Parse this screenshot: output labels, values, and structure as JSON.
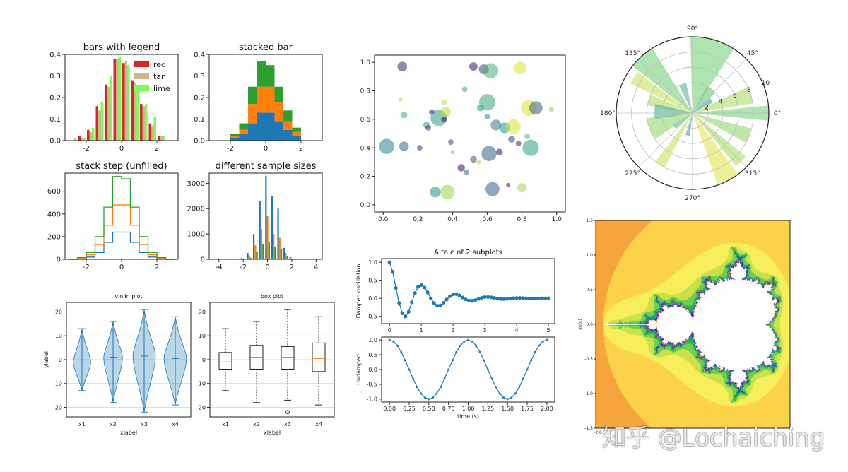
{
  "watermark": "知乎 @Lochaiching",
  "colors": {
    "red": "#d62728",
    "tan": "#d2b48c",
    "lime": "#7cfc5a",
    "blue": "#1f77b4",
    "orange": "#ff7f0e",
    "green": "#2ca02c",
    "violin": "#1f77b4",
    "axes": "#444444"
  },
  "chart_data": [
    {
      "id": "bars",
      "type": "bar",
      "title": "bars with legend",
      "xlim": [
        -3.2,
        3.2
      ],
      "ylim": [
        0,
        0.4
      ],
      "xticks": [
        "-2",
        "0",
        "2"
      ],
      "yticks": [
        "0.0",
        "0.1",
        "0.2",
        "0.3",
        "0.4"
      ],
      "x": [
        -2.75,
        -2.25,
        -1.75,
        -1.25,
        -0.75,
        -0.25,
        0.25,
        0.75,
        1.25,
        1.75,
        2.25,
        2.75
      ],
      "series": [
        {
          "name": "red",
          "values": [
            0.0,
            0.02,
            0.05,
            0.16,
            0.26,
            0.38,
            0.36,
            0.28,
            0.17,
            0.08,
            0.02,
            0.0
          ]
        },
        {
          "name": "tan",
          "values": [
            0.0,
            0.01,
            0.04,
            0.14,
            0.25,
            0.38,
            0.37,
            0.27,
            0.16,
            0.07,
            0.02,
            0.0
          ]
        },
        {
          "name": "lime",
          "values": [
            0.01,
            0.01,
            0.06,
            0.18,
            0.3,
            0.39,
            0.35,
            0.24,
            0.17,
            0.11,
            0.02,
            0.0
          ]
        }
      ]
    },
    {
      "id": "stacked",
      "type": "bar",
      "title": "stacked bar",
      "xlim": [
        -3.2,
        3.2
      ],
      "ylim": [
        0,
        0.4
      ],
      "xticks": [
        "-2",
        "0",
        "2"
      ],
      "yticks": [
        "0.0",
        "0.1",
        "0.2",
        "0.3",
        "0.4"
      ],
      "x": [
        -2.75,
        -2.25,
        -1.75,
        -1.25,
        -0.75,
        -0.25,
        0.25,
        0.75,
        1.25,
        1.75,
        2.25,
        2.75
      ],
      "series": [
        {
          "values": [
            0.0,
            0.0,
            0.01,
            0.03,
            0.08,
            0.13,
            0.13,
            0.09,
            0.05,
            0.02,
            0.0,
            0.0
          ]
        },
        {
          "values": [
            0.0,
            0.0,
            0.01,
            0.02,
            0.09,
            0.12,
            0.12,
            0.09,
            0.04,
            0.02,
            0.0,
            0.0
          ]
        },
        {
          "values": [
            0.0,
            0.0,
            0.01,
            0.03,
            0.08,
            0.12,
            0.1,
            0.07,
            0.05,
            0.02,
            0.0,
            0.0
          ]
        }
      ]
    },
    {
      "id": "step",
      "type": "line",
      "title": "stack step (unfilled)",
      "xlim": [
        -3.2,
        3.2
      ],
      "ylim": [
        0,
        760
      ],
      "xticks": [
        "-2",
        "0",
        "2"
      ],
      "yticks": [
        "0",
        "200",
        "400",
        "600"
      ],
      "edges": [
        -3.0,
        -2.5,
        -2.0,
        -1.5,
        -1.0,
        -0.5,
        0.0,
        0.5,
        1.0,
        1.5,
        2.0,
        2.5,
        3.0
      ],
      "series": [
        {
          "values": [
            0,
            5,
            20,
            60,
            150,
            240,
            240,
            150,
            60,
            20,
            5,
            0
          ]
        },
        {
          "values": [
            0,
            10,
            40,
            130,
            300,
            480,
            480,
            300,
            130,
            40,
            10,
            0
          ]
        },
        {
          "values": [
            0,
            15,
            60,
            200,
            460,
            730,
            710,
            460,
            200,
            60,
            15,
            0
          ]
        }
      ]
    },
    {
      "id": "samples",
      "type": "bar",
      "title": "different sample sizes",
      "xlim": [
        -4.8,
        4.5
      ],
      "ylim": [
        0,
        3400
      ],
      "xticks": [
        "-4",
        "-2",
        "0",
        "2",
        "4"
      ],
      "yticks": [
        "0",
        "1000",
        "2000",
        "3000"
      ],
      "x": [
        -2.0,
        -1.5,
        -1.0,
        -0.5,
        0.0,
        0.5,
        1.0,
        1.5,
        2.0
      ],
      "series": [
        {
          "values": [
            50,
            250,
            1000,
            2300,
            3300,
            2500,
            2000,
            450,
            80
          ]
        },
        {
          "values": [
            20,
            150,
            550,
            1200,
            1700,
            1000,
            850,
            250,
            40
          ]
        },
        {
          "values": [
            10,
            60,
            300,
            600,
            700,
            480,
            400,
            130,
            20
          ]
        }
      ]
    },
    {
      "id": "scatter",
      "type": "scatter",
      "xlim": [
        -0.05,
        1.05
      ],
      "ylim": [
        -0.05,
        1.05
      ],
      "xticks": [
        "0.0",
        "0.2",
        "0.4",
        "0.6",
        "0.8",
        "1.0"
      ],
      "yticks": [
        "0.0",
        "0.2",
        "0.4",
        "0.6",
        "0.8",
        "1.0"
      ],
      "points": [
        [
          0.02,
          0.41,
          300,
          0.45
        ],
        [
          0.11,
          0.97,
          120,
          0.1
        ],
        [
          0.12,
          0.41,
          120,
          0.35
        ],
        [
          0.12,
          0.63,
          60,
          0.65
        ],
        [
          0.1,
          0.74,
          20,
          0.85
        ],
        [
          0.21,
          0.4,
          40,
          0.15
        ],
        [
          0.25,
          0.56,
          60,
          0.55
        ],
        [
          0.28,
          0.65,
          40,
          0.05
        ],
        [
          0.32,
          0.61,
          350,
          0.55
        ],
        [
          0.3,
          0.09,
          150,
          0.5
        ],
        [
          0.36,
          0.65,
          140,
          0.9
        ],
        [
          0.35,
          0.72,
          40,
          0.9
        ],
        [
          0.37,
          0.09,
          270,
          0.85
        ],
        [
          0.45,
          0.26,
          70,
          0.05
        ],
        [
          0.39,
          0.44,
          40,
          0.2
        ],
        [
          0.47,
          0.81,
          40,
          0.6
        ],
        [
          0.52,
          0.97,
          90,
          0.05
        ],
        [
          0.56,
          0.68,
          60,
          0.55
        ],
        [
          0.58,
          0.95,
          130,
          0.2
        ],
        [
          0.62,
          0.94,
          300,
          0.65
        ],
        [
          0.6,
          0.72,
          350,
          0.6
        ],
        [
          0.61,
          0.36,
          300,
          0.3
        ],
        [
          0.6,
          0.62,
          40,
          0.5
        ],
        [
          0.65,
          0.56,
          150,
          0.4
        ],
        [
          0.63,
          0.11,
          260,
          0.3
        ],
        [
          0.67,
          0.37,
          60,
          0.05
        ],
        [
          0.7,
          0.54,
          150,
          0.5
        ],
        [
          0.75,
          0.55,
          280,
          0.95
        ],
        [
          0.74,
          0.46,
          60,
          0.2
        ],
        [
          0.79,
          0.96,
          200,
          0.95
        ],
        [
          0.8,
          0.12,
          110,
          0.85
        ],
        [
          0.84,
          0.68,
          330,
          0.95
        ],
        [
          0.85,
          0.4,
          350,
          0.55
        ],
        [
          0.88,
          0.68,
          230,
          0.3
        ],
        [
          0.83,
          0.48,
          40,
          0.7
        ],
        [
          0.97,
          0.67,
          30,
          0.8
        ],
        [
          0.52,
          0.32,
          60,
          0.25
        ],
        [
          0.26,
          0.54,
          40,
          0.15
        ],
        [
          0.55,
          0.3,
          30,
          0.9
        ],
        [
          0.72,
          0.14,
          20,
          0.05
        ],
        [
          0.48,
          0.23,
          40,
          0.35
        ],
        [
          0.4,
          0.37,
          20,
          0.75
        ],
        [
          0.78,
          0.43,
          40,
          0.1
        ],
        [
          0.35,
          0.6,
          40,
          0.05
        ]
      ]
    },
    {
      "id": "polar",
      "type": "bar",
      "angle_labels": [
        "0°",
        "45°",
        "90°",
        "135°",
        "180°",
        "225°",
        "270°",
        "315°"
      ],
      "r_labels": [
        "2",
        "4",
        "6",
        "8",
        "10"
      ],
      "rmax": 10,
      "bars": [
        [
          0.0,
          10,
          0.2,
          0.75
        ],
        [
          0.3,
          8,
          0.28,
          0.85
        ],
        [
          0.6,
          3,
          0.25,
          0.5
        ],
        [
          0.9,
          4,
          0.35,
          0.7
        ],
        [
          1.3,
          10,
          0.6,
          0.75
        ],
        [
          1.9,
          4,
          0.25,
          0.6
        ],
        [
          2.3,
          10,
          0.35,
          0.75
        ],
        [
          2.6,
          9,
          0.2,
          0.9
        ],
        [
          2.85,
          6,
          0.25,
          0.85
        ],
        [
          3.1,
          5,
          0.4,
          0.55
        ],
        [
          3.5,
          6,
          0.5,
          0.8
        ],
        [
          3.8,
          3,
          0.2,
          0.65
        ],
        [
          4.15,
          8,
          0.18,
          0.9
        ],
        [
          4.5,
          3,
          0.2,
          0.5
        ],
        [
          5.2,
          10,
          0.3,
          0.95
        ],
        [
          5.5,
          9,
          0.2,
          0.85
        ],
        [
          5.9,
          8,
          0.25,
          0.8
        ]
      ]
    },
    {
      "id": "subplots",
      "type": "line",
      "title": "A tale of 2 subplots",
      "ylabel_top": "Damped oscillation",
      "ylabel_bottom": "Undamped",
      "xlabel": "time (s)",
      "top": {
        "xlim": [
          -0.25,
          5.2
        ],
        "ylim": [
          -0.7,
          1.1
        ],
        "xticks": [
          "0",
          "1",
          "2",
          "3",
          "4",
          "5"
        ],
        "yticks": [
          "-0.5",
          "0.0",
          "0.5",
          "1.0"
        ],
        "x": [
          0,
          0.1,
          0.2,
          0.3,
          0.4,
          0.5,
          0.6,
          0.7,
          0.8,
          0.9,
          1.0,
          1.1,
          1.2,
          1.3,
          1.4,
          1.5,
          1.6,
          1.7,
          1.8,
          1.9,
          2.0,
          2.1,
          2.2,
          2.3,
          2.4,
          2.5,
          2.6,
          2.7,
          2.8,
          2.9,
          3.0,
          3.1,
          3.2,
          3.3,
          3.4,
          3.5,
          3.6,
          3.7,
          3.8,
          3.9,
          4.0,
          4.1,
          4.2,
          4.3,
          4.4,
          4.5,
          4.6,
          4.7,
          4.8,
          4.9,
          5.0
        ],
        "y": [
          1.0,
          0.736,
          0.288,
          -0.126,
          -0.412,
          -0.502,
          -0.373,
          -0.11,
          0.147,
          0.321,
          0.368,
          0.301,
          0.163,
          0.001,
          -0.132,
          -0.203,
          -0.195,
          -0.124,
          -0.029,
          0.059,
          0.112,
          0.116,
          0.08,
          0.024,
          -0.029,
          -0.062,
          -0.067,
          -0.048,
          -0.016,
          0.012,
          0.035,
          0.037,
          0.028,
          0.011,
          -0.006,
          -0.018,
          -0.02,
          -0.014,
          -0.005,
          0.004,
          0.01,
          0.011,
          0.008,
          0.003,
          -0.002,
          -0.005,
          -0.006,
          -0.004,
          -0.001,
          0.001,
          0.003
        ]
      },
      "bottom": {
        "xlim": [
          -0.1,
          2.1
        ],
        "ylim": [
          -1.1,
          1.1
        ],
        "xticks": [
          "0.00",
          "0.25",
          "0.50",
          "0.75",
          "1.00",
          "1.25",
          "1.50",
          "1.75",
          "2.00"
        ],
        "yticks": [
          "-1.0",
          "-0.5",
          "0.0",
          "0.5",
          "1.0"
        ],
        "x": [
          0,
          0.05,
          0.1,
          0.15,
          0.2,
          0.25,
          0.3,
          0.35,
          0.4,
          0.45,
          0.5,
          0.55,
          0.6,
          0.65,
          0.7,
          0.75,
          0.8,
          0.85,
          0.9,
          0.95,
          1.0,
          1.05,
          1.1,
          1.15,
          1.2,
          1.25,
          1.3,
          1.35,
          1.4,
          1.45,
          1.5,
          1.55,
          1.6,
          1.65,
          1.7,
          1.75,
          1.8,
          1.85,
          1.9,
          1.95,
          2.0
        ],
        "y": [
          1.0,
          0.951,
          0.809,
          0.588,
          0.309,
          0.0,
          -0.309,
          -0.588,
          -0.809,
          -0.951,
          -1.0,
          -0.951,
          -0.809,
          -0.588,
          -0.309,
          0.0,
          0.309,
          0.588,
          0.809,
          0.951,
          1.0,
          0.951,
          0.809,
          0.588,
          0.309,
          0.0,
          -0.309,
          -0.588,
          -0.809,
          -0.951,
          -1.0,
          -0.951,
          -0.809,
          -0.588,
          -0.309,
          0.0,
          0.309,
          0.588,
          0.809,
          0.951,
          1.0
        ]
      }
    },
    {
      "id": "violin",
      "type": "other",
      "title": "violin plot",
      "xlabel": "xlabel",
      "ylabel": "ylabel",
      "categories": [
        "x1",
        "x2",
        "x3",
        "x4"
      ],
      "ylim": [
        -24,
        24
      ],
      "yticks": [
        "-20",
        "-10",
        "0",
        "10",
        "20"
      ],
      "ytick_values": [
        -20,
        -10,
        0,
        10,
        20
      ],
      "stats": [
        {
          "min": -13,
          "max": 13,
          "median": -1,
          "width": 0.28
        },
        {
          "min": -18,
          "max": 16,
          "median": 1,
          "width": 0.3
        },
        {
          "min": -22,
          "max": 21,
          "median": 1.5,
          "width": 0.36
        },
        {
          "min": -19,
          "max": 18,
          "median": 0.5,
          "width": 0.36
        }
      ]
    },
    {
      "id": "box",
      "type": "other",
      "title": "box plot",
      "xlabel": "xlabel",
      "categories": [
        "x1",
        "x2",
        "x3",
        "x4"
      ],
      "ylim": [
        -24,
        24
      ],
      "yticks": [
        "-20",
        "-10",
        "0",
        "10",
        "20"
      ],
      "ytick_values": [
        -20,
        -10,
        0,
        10,
        20
      ],
      "stats": [
        {
          "min": -13,
          "q1": -4,
          "median": -1,
          "q3": 3,
          "max": 13
        },
        {
          "min": -18,
          "q1": -4,
          "median": 1,
          "q3": 6,
          "max": 16
        },
        {
          "min": -17,
          "q1": -4,
          "median": 1,
          "q3": 5.5,
          "max": 21,
          "outliers": [
            -22
          ]
        },
        {
          "min": -19,
          "q1": -5,
          "median": 0.5,
          "q3": 7,
          "max": 18
        }
      ]
    },
    {
      "id": "mandelbrot",
      "type": "heatmap",
      "xlim": [
        -2.1,
        0.6
      ],
      "ylim": [
        -1.5,
        1.5
      ],
      "xticks": [
        "-2.0"
      ],
      "yticks": [
        "-1.5",
        "-1.0",
        "-0.5",
        "0.0",
        "0.5",
        "1.0",
        "1.5"
      ],
      "ylabel": "Im(c)"
    }
  ]
}
